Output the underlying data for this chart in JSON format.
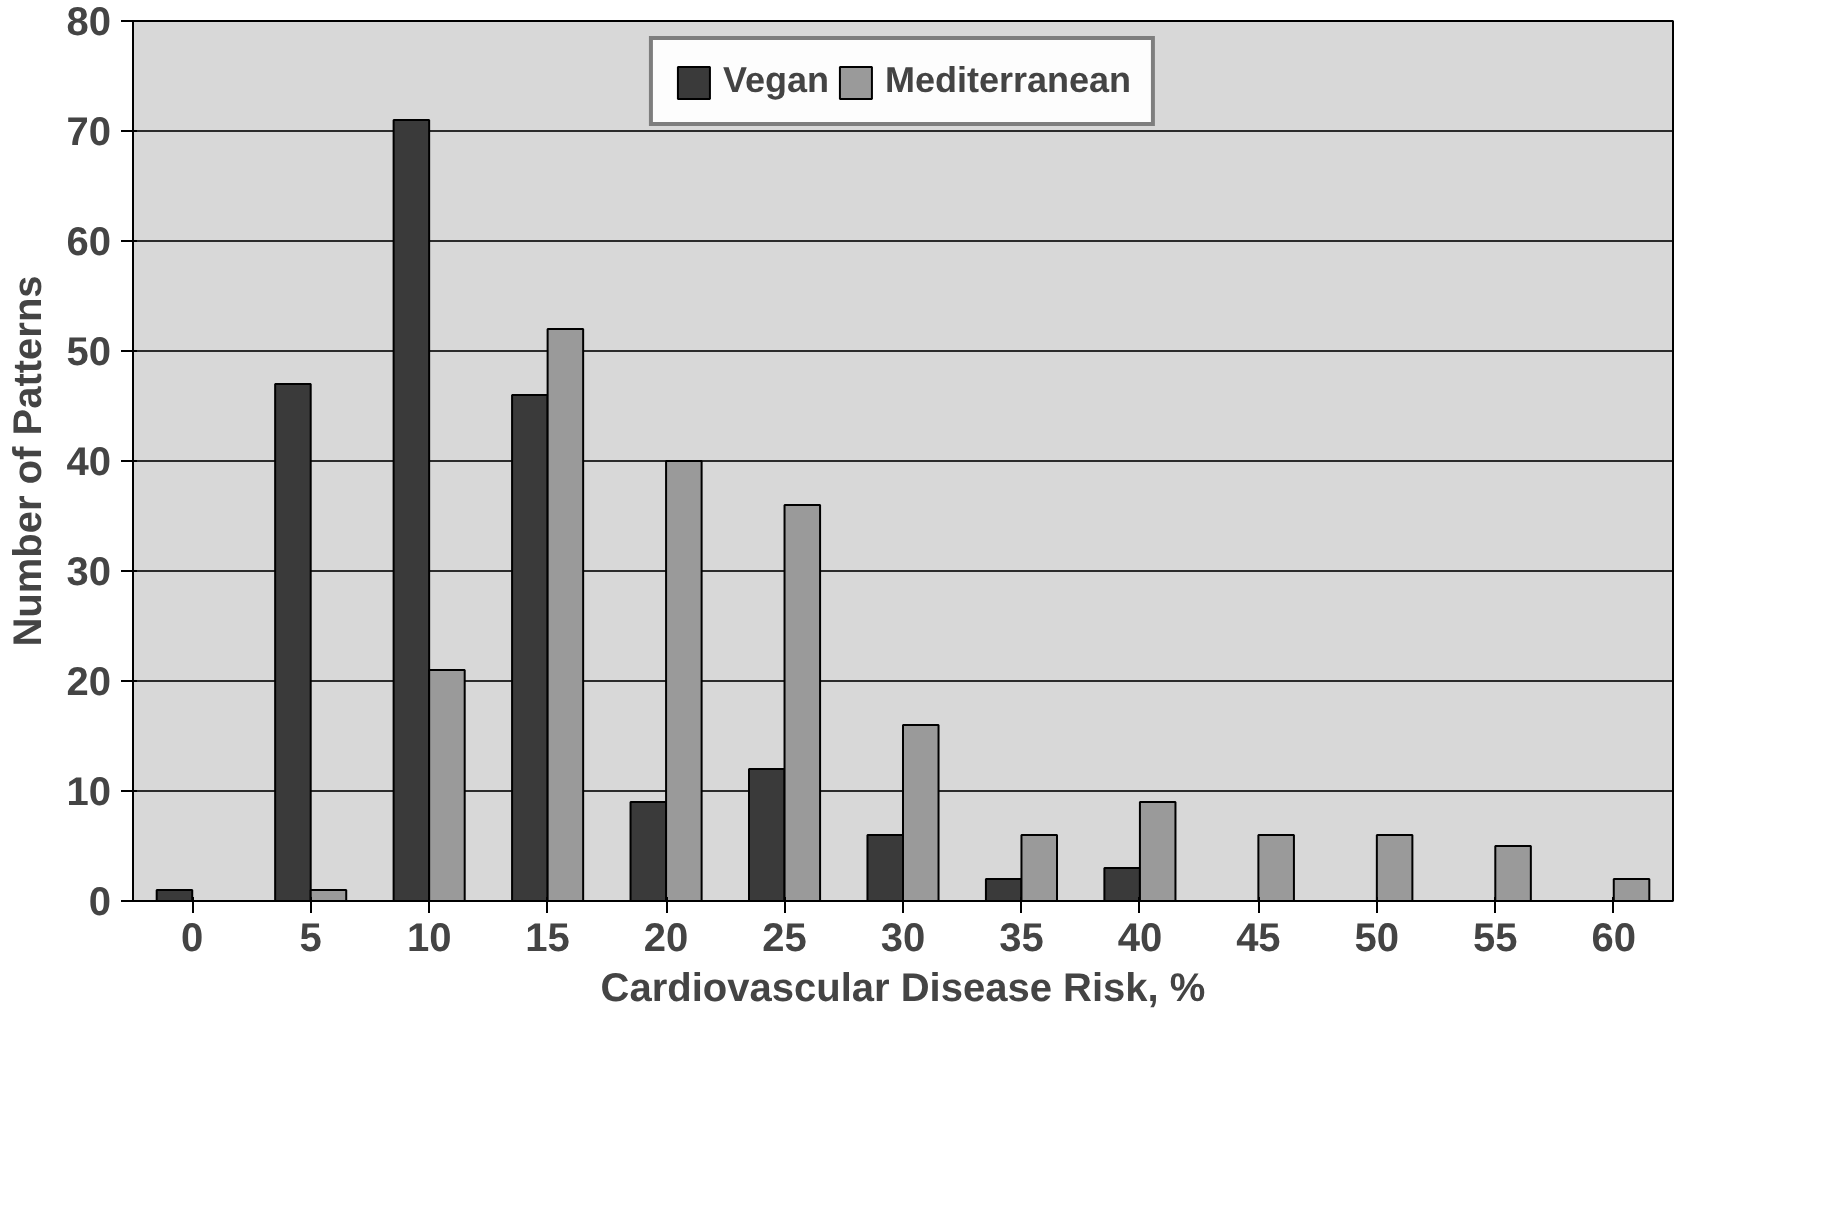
{
  "chart_data": {
    "type": "bar",
    "xlabel": "Cardiovascular Disease Risk, %",
    "ylabel": "Number of Patterns",
    "categories": [
      "0",
      "5",
      "10",
      "15",
      "20",
      "25",
      "30",
      "35",
      "40",
      "45",
      "50",
      "55",
      "60"
    ],
    "series": [
      {
        "name": "Vegan",
        "color": "#3a3a3a",
        "values": [
          1,
          47,
          71,
          46,
          9,
          12,
          6,
          2,
          3,
          null,
          null,
          null,
          null
        ]
      },
      {
        "name": "Mediterranean",
        "color": "#9a9a9a",
        "values": [
          null,
          1,
          21,
          52,
          40,
          36,
          16,
          6,
          9,
          6,
          6,
          5,
          2
        ]
      }
    ],
    "ylim": [
      0,
      80
    ],
    "yticks": [
      0,
      10,
      20,
      30,
      40,
      50,
      60,
      70,
      80
    ],
    "grid": "y",
    "legend": "top"
  }
}
